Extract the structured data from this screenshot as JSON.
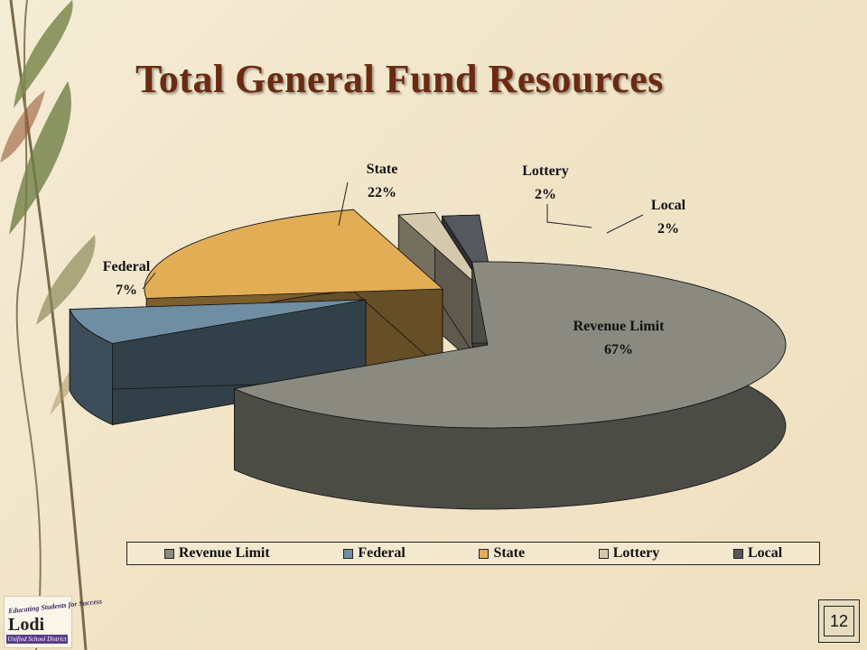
{
  "slide": {
    "title": "Total General Fund Resources",
    "page_number": "12",
    "logo": {
      "tagline": "Educating Students for Success",
      "name": "Lodi",
      "subtitle": "Unified School District"
    }
  },
  "colors": {
    "Revenue Limit": "#8a8a80",
    "Federal": "#6f8ea3",
    "State": "#e2ad55",
    "Lottery": "#d5c9ad",
    "Local": "#55595d"
  },
  "chart_data": {
    "type": "pie",
    "title": "",
    "legend_position": "bottom",
    "categories": [
      "Revenue Limit",
      "Federal",
      "State",
      "Lottery",
      "Local"
    ],
    "values": [
      67,
      7,
      22,
      2,
      2
    ],
    "data_labels": [
      {
        "name": "Revenue Limit",
        "value": "67%"
      },
      {
        "name": "Federal",
        "value": "7%"
      },
      {
        "name": "State",
        "value": "22%"
      },
      {
        "name": "Lottery",
        "value": "2%"
      },
      {
        "name": "Local",
        "value": "2%"
      }
    ]
  }
}
